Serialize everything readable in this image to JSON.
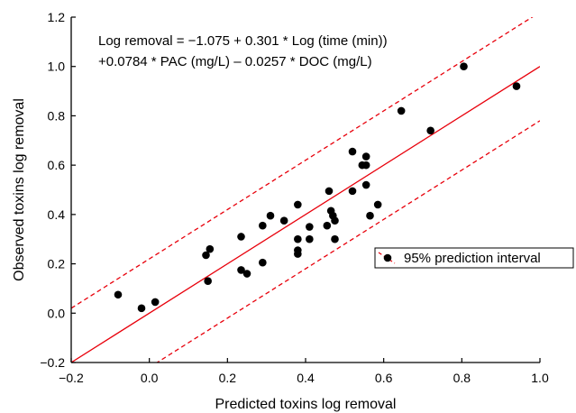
{
  "chart_data": {
    "type": "scatter",
    "xlabel": "Predicted toxins log removal",
    "ylabel": "Observed toxins log removal",
    "xlim": [
      -0.2,
      1.0
    ],
    "ylim": [
      -0.2,
      1.2
    ],
    "xticks": [
      -0.2,
      0.0,
      0.2,
      0.4,
      0.6,
      0.8,
      1.0
    ],
    "yticks": [
      -0.2,
      0.0,
      0.2,
      0.4,
      0.6,
      0.8,
      1.0,
      1.2
    ],
    "xtick_labels": [
      "−0.2",
      "0.0",
      "0.2",
      "0.4",
      "0.6",
      "0.8",
      "1.0"
    ],
    "ytick_labels": [
      "−0.2",
      "0.0",
      "0.2",
      "0.4",
      "0.6",
      "0.8",
      "1.0",
      "1.2"
    ],
    "grid": false,
    "annotation_lines": [
      "Log removal = −1.075 + 0.301 * Log (time (min))",
      "+0.0784 * PAC (mg/L) – 0.0257 * DOC (mg/L)"
    ],
    "legend": {
      "label": "95% prediction interval",
      "placement": "right"
    },
    "fit_line": {
      "color": "#e8000b",
      "intercept": 0.0,
      "slope": 1.0
    },
    "prediction_interval": {
      "color": "#e8000b",
      "offset": 0.22
    },
    "points_color": "#000000",
    "points": [
      [
        -0.08,
        0.075
      ],
      [
        -0.02,
        0.02
      ],
      [
        0.015,
        0.045
      ],
      [
        0.145,
        0.235
      ],
      [
        0.15,
        0.13
      ],
      [
        0.155,
        0.26
      ],
      [
        0.235,
        0.31
      ],
      [
        0.235,
        0.175
      ],
      [
        0.25,
        0.16
      ],
      [
        0.29,
        0.355
      ],
      [
        0.29,
        0.205
      ],
      [
        0.31,
        0.395
      ],
      [
        0.345,
        0.375
      ],
      [
        0.38,
        0.44
      ],
      [
        0.38,
        0.3
      ],
      [
        0.38,
        0.255
      ],
      [
        0.38,
        0.24
      ],
      [
        0.41,
        0.35
      ],
      [
        0.41,
        0.3
      ],
      [
        0.455,
        0.355
      ],
      [
        0.46,
        0.495
      ],
      [
        0.465,
        0.415
      ],
      [
        0.47,
        0.395
      ],
      [
        0.475,
        0.3
      ],
      [
        0.475,
        0.375
      ],
      [
        0.52,
        0.495
      ],
      [
        0.52,
        0.655
      ],
      [
        0.545,
        0.6
      ],
      [
        0.555,
        0.6
      ],
      [
        0.555,
        0.635
      ],
      [
        0.555,
        0.52
      ],
      [
        0.565,
        0.395
      ],
      [
        0.585,
        0.44
      ],
      [
        0.645,
        0.82
      ],
      [
        0.72,
        0.74
      ],
      [
        0.805,
        1.0
      ],
      [
        0.94,
        0.92
      ]
    ]
  }
}
